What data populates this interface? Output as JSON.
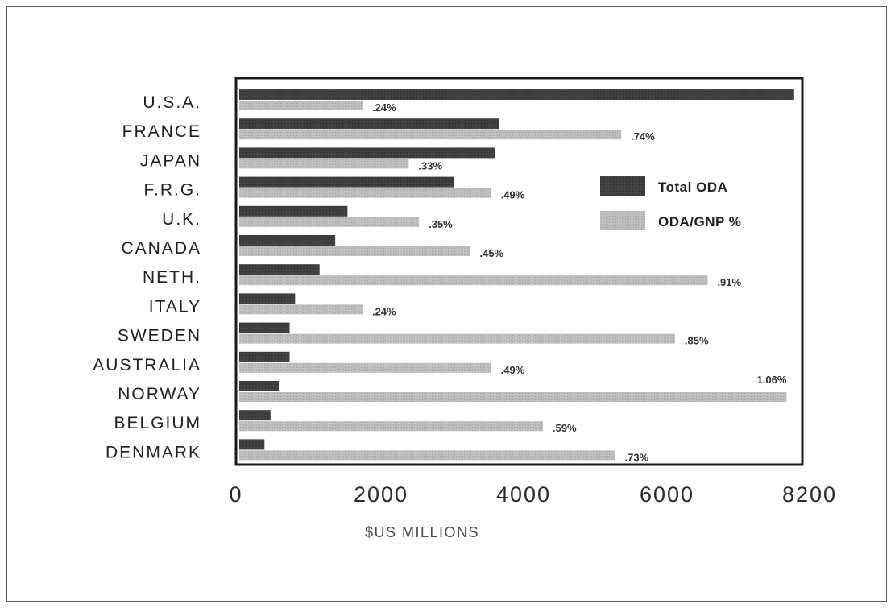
{
  "chart_data": {
    "type": "bar",
    "orientation": "horizontal",
    "categories": [
      "U.S.A.",
      "FRANCE",
      "JAPAN",
      "F.R.G.",
      "U.K.",
      "CANADA",
      "NETH.",
      "ITALY",
      "SWEDEN",
      "AUSTRALIA",
      "NORWAY",
      "BELGIUM",
      "DENMARK"
    ],
    "series": [
      {
        "name": "Total ODA",
        "color": "#3c3c3c",
        "values": [
          8150,
          3810,
          3760,
          3150,
          1590,
          1410,
          1180,
          820,
          740,
          740,
          580,
          460,
          370
        ]
      },
      {
        "name": "ODA/GNP %",
        "color": "#b4b4b4",
        "values": [
          1810,
          5610,
          2490,
          3700,
          2640,
          3390,
          6880,
          1810,
          6400,
          3700,
          8040,
          4460,
          5520
        ],
        "labels": [
          ".24%",
          ".74%",
          ".33%",
          ".49%",
          ".35%",
          ".45%",
          ".91%",
          ".24%",
          ".85%",
          ".49%",
          "1.06%",
          ".59%",
          ".73%"
        ]
      }
    ],
    "xlabel": "$US MILLIONS",
    "xticks": [
      "0",
      "2000",
      "4000",
      "6000",
      "8200"
    ],
    "xlim": [
      0,
      8200
    ],
    "legend": {
      "position": "right",
      "entries": [
        "Total ODA",
        "ODA/GNP %"
      ]
    },
    "grid": false
  }
}
